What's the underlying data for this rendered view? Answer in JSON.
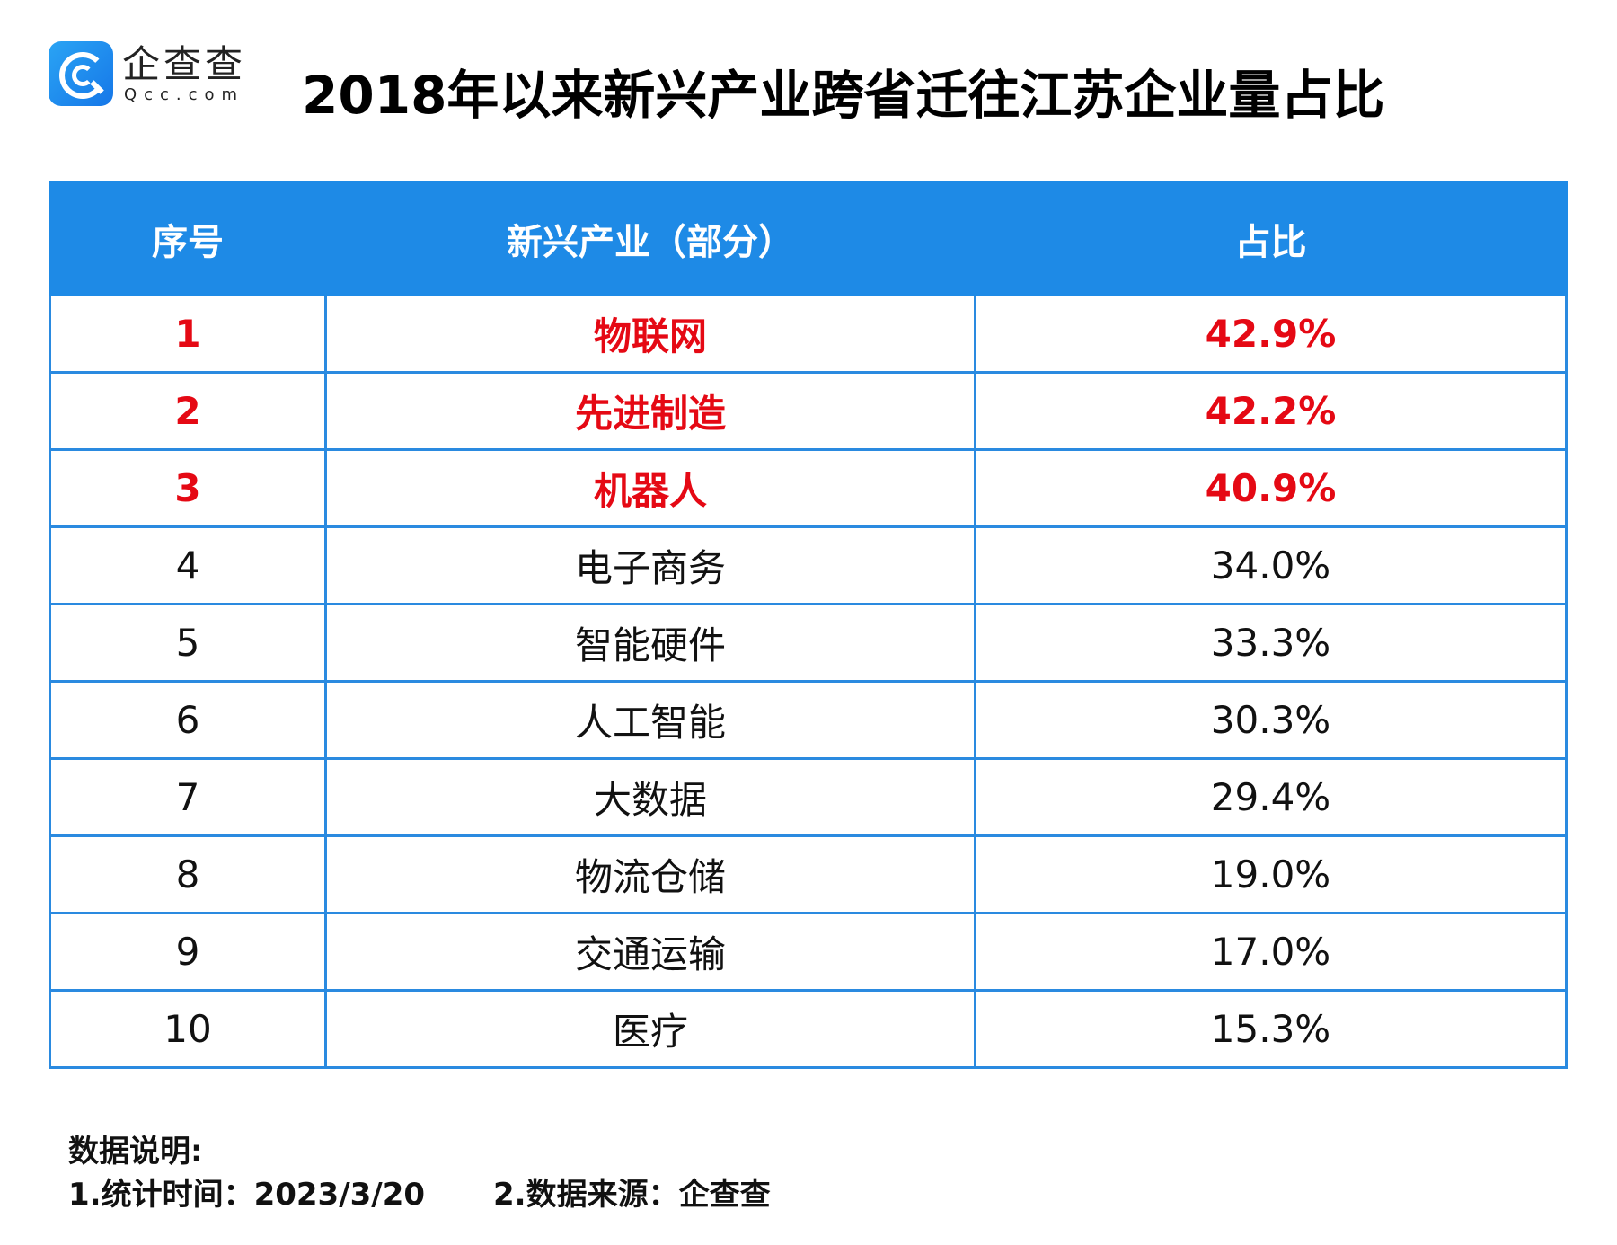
{
  "logo": {
    "cn": "企查查",
    "en": "Qcc.com"
  },
  "title": "2018年以来新兴产业跨省迁往江苏企业量占比",
  "table": {
    "headers": [
      "序号",
      "新兴产业（部分）",
      "占比"
    ],
    "rows": [
      {
        "rank": "1",
        "industry": "物联网",
        "share": "42.9%",
        "highlight": true
      },
      {
        "rank": "2",
        "industry": "先进制造",
        "share": "42.2%",
        "highlight": true
      },
      {
        "rank": "3",
        "industry": "机器人",
        "share": "40.9%",
        "highlight": true
      },
      {
        "rank": "4",
        "industry": "电子商务",
        "share": "34.0%",
        "highlight": false
      },
      {
        "rank": "5",
        "industry": "智能硬件",
        "share": "33.3%",
        "highlight": false
      },
      {
        "rank": "6",
        "industry": "人工智能",
        "share": "30.3%",
        "highlight": false
      },
      {
        "rank": "7",
        "industry": "大数据",
        "share": "29.4%",
        "highlight": false
      },
      {
        "rank": "8",
        "industry": "物流仓储",
        "share": "19.0%",
        "highlight": false
      },
      {
        "rank": "9",
        "industry": "交通运输",
        "share": "17.0%",
        "highlight": false
      },
      {
        "rank": "10",
        "industry": "医疗",
        "share": "15.3%",
        "highlight": false
      }
    ]
  },
  "notes": {
    "heading": "数据说明:",
    "time": "1.统计时间：2023/3/20",
    "source": "2.数据来源：企查查"
  },
  "colors": {
    "header_bg": "#1e8ae6",
    "highlight": "#e50914",
    "border": "#2a8ae0"
  }
}
